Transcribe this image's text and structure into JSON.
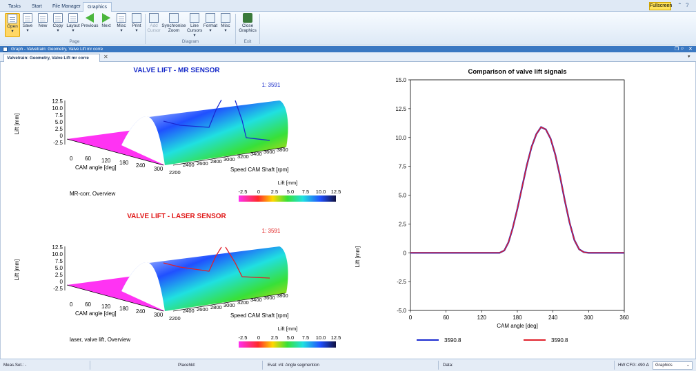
{
  "tabs": [
    "Tasks",
    "Start",
    "File Manager",
    "Graphics"
  ],
  "fullscreen_label": "Fullscreen",
  "ribbon": {
    "page_buttons": [
      "Open",
      "Save",
      "New",
      "Copy",
      "Layout",
      "Previous",
      "Next",
      "Misc",
      "Print"
    ],
    "page_group": "Page",
    "diagram_buttons": [
      "Add Cursor",
      "Synchronise Zoom",
      "Line Cursors",
      "Format",
      "Misc"
    ],
    "diagram_group": "Diagram",
    "exit_buttons": [
      "Close Graphics"
    ],
    "exit_group": "Exit"
  },
  "window_title": "Graph - Valvetrain: Geometry, Valve Lift mr corre",
  "doc_tab": "Valvetrain: Geometry, Valve Lift mr corre",
  "colors": {
    "mr_title": "#1428c8",
    "laser_title": "#e01818",
    "series1": "#1a2ad0",
    "series2": "#e0202a",
    "accent": "#3a78c2"
  },
  "panels": [
    {
      "title": "VALVE LIFT - MR SENSOR",
      "cursor": "1: 3591",
      "zlabel": "Lift [mm]",
      "zticks": [
        "12.5",
        "10.0",
        "7.5",
        "5.0",
        "2.5",
        "0",
        "-2.5"
      ],
      "xlabel": "CAM angle [deg]",
      "xticks": [
        "0",
        "60",
        "120",
        "180",
        "240",
        "300"
      ],
      "ylabel": "Speed CAM Shaft [rpm]",
      "yticks": [
        "2200",
        "2400",
        "2600",
        "2800",
        "3000",
        "3200",
        "3400",
        "3600",
        "3800"
      ],
      "caption": "MR-corr, Overview",
      "colorbar_title": "Lift [mm]",
      "colorbar_ticks": [
        "-2.5",
        "0",
        "2.5",
        "5.0",
        "7.5",
        "10.0",
        "12.5"
      ]
    },
    {
      "title": "VALVE LIFT - LASER SENSOR",
      "cursor": "1: 3591",
      "zlabel": "Lift [mm]",
      "zticks": [
        "12.5",
        "10.0",
        "7.5",
        "5.0",
        "2.5",
        "0",
        "-2.5"
      ],
      "xlabel": "CAM angle [deg]",
      "xticks": [
        "0",
        "60",
        "120",
        "180",
        "240",
        "300"
      ],
      "ylabel": "Speed CAM Shaft [rpm]",
      "yticks": [
        "2200",
        "2400",
        "2600",
        "2800",
        "3000",
        "3200",
        "3400",
        "3600",
        "3800"
      ],
      "caption": "laser, valve lift, Overview",
      "colorbar_title": "Lift [mm]",
      "colorbar_ticks": [
        "-2.5",
        "0",
        "2.5",
        "5.0",
        "7.5",
        "10.0",
        "12.5"
      ]
    }
  ],
  "chart_data": {
    "type": "line",
    "title": "Comparison of valve lift signals",
    "xlabel": "CAM angle [deg]",
    "ylabel": "Lift [mm]",
    "xlim": [
      0,
      360
    ],
    "ylim": [
      -5,
      15
    ],
    "xticks": [
      0,
      60,
      120,
      180,
      240,
      300,
      360
    ],
    "yticks": [
      -5.0,
      -2.5,
      0,
      2.5,
      5.0,
      7.5,
      10.0,
      12.5,
      15.0
    ],
    "grid": false,
    "legend": "bottom",
    "series": [
      {
        "name": "3590.8",
        "color": "#1a2ad0",
        "x": [
          0,
          150,
          158,
          165,
          172,
          180,
          188,
          196,
          204,
          212,
          220,
          228,
          236,
          244,
          252,
          260,
          268,
          276,
          284,
          292,
          300,
          360
        ],
        "y": [
          0,
          0,
          0.2,
          0.9,
          2.1,
          3.8,
          5.7,
          7.6,
          9.2,
          10.3,
          10.9,
          10.7,
          9.9,
          8.5,
          6.6,
          4.5,
          2.6,
          1.1,
          0.3,
          0.05,
          0,
          0
        ]
      },
      {
        "name": "3590.8",
        "color": "#e0202a",
        "x": [
          0,
          150,
          158,
          165,
          172,
          180,
          188,
          196,
          204,
          212,
          220,
          228,
          236,
          244,
          252,
          260,
          268,
          276,
          284,
          292,
          300,
          360
        ],
        "y": [
          0,
          0,
          0.2,
          0.9,
          2.1,
          3.8,
          5.7,
          7.6,
          9.2,
          10.3,
          10.9,
          10.7,
          9.9,
          8.5,
          6.6,
          4.5,
          2.6,
          1.1,
          0.3,
          0.05,
          0,
          0
        ]
      }
    ]
  },
  "statusbar": {
    "meas": "Meas.Set.: -",
    "placeholder": "Placehld:",
    "eval": "Eval: #4: Angle segmention",
    "data": "Data:",
    "hw": "HW CFG: 490 Δ",
    "mode": "Graphics"
  }
}
